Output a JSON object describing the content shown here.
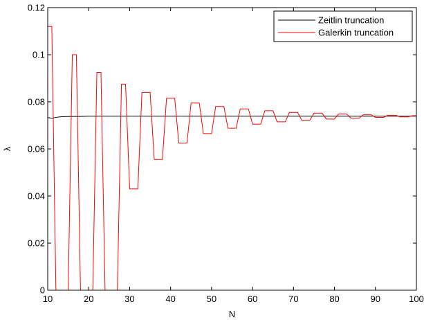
{
  "chart_data": {
    "type": "line",
    "title": "",
    "xlabel": "N",
    "ylabel": "λ",
    "xlim": [
      10,
      100
    ],
    "ylim": [
      0,
      0.12
    ],
    "xticks": [
      10,
      20,
      30,
      40,
      50,
      60,
      70,
      80,
      90,
      100
    ],
    "yticks": [
      0,
      0.02,
      0.04,
      0.06,
      0.08,
      0.1,
      0.12
    ],
    "xtick_labels": [
      "10",
      "20",
      "30",
      "40",
      "50",
      "60",
      "70",
      "80",
      "90",
      "100"
    ],
    "ytick_labels": [
      "0",
      "0.02",
      "0.04",
      "0.06",
      "0.08",
      "0.1",
      "0.12"
    ],
    "grid": false,
    "legend_position": "top-right",
    "series": [
      {
        "name": "Zeitlin truncation",
        "color": "#000000",
        "x": [
          10,
          11,
          12,
          13,
          14,
          16,
          18,
          20,
          25,
          30,
          40,
          50,
          60,
          70,
          80,
          90,
          100
        ],
        "y": [
          0.0733,
          0.073,
          0.0734,
          0.0736,
          0.0737,
          0.0738,
          0.0738,
          0.0739,
          0.0739,
          0.0739,
          0.0739,
          0.0739,
          0.0739,
          0.0739,
          0.0739,
          0.0739,
          0.0739
        ]
      },
      {
        "name": "Galerkin truncation",
        "color": "#ff0000",
        "x": [
          10,
          11,
          12,
          13,
          14,
          15,
          16,
          17,
          18,
          19,
          20,
          21,
          22,
          23,
          24,
          25,
          26,
          27,
          28,
          29,
          30,
          31,
          32,
          33,
          34,
          35,
          36,
          37,
          38,
          39,
          40,
          41,
          42,
          43,
          44,
          45,
          46,
          47,
          48,
          49,
          50,
          51,
          52,
          53,
          54,
          55,
          56,
          57,
          58,
          59,
          60,
          61,
          62,
          63,
          64,
          65,
          66,
          67,
          68,
          69,
          70,
          71,
          72,
          73,
          74,
          75,
          76,
          77,
          78,
          79,
          80,
          81,
          82,
          83,
          84,
          85,
          86,
          87,
          88,
          89,
          90,
          91,
          92,
          93,
          94,
          95,
          96,
          97,
          98,
          99,
          100
        ],
        "y": [
          0.112,
          0.112,
          0,
          0,
          0,
          0,
          0.1,
          0.1,
          0,
          0,
          0,
          0,
          0.0925,
          0.0925,
          0,
          0,
          0,
          0,
          0.0875,
          0.0875,
          0.043,
          0.043,
          0.043,
          0.084,
          0.084,
          0.084,
          0.0555,
          0.0555,
          0.0555,
          0.0815,
          0.0815,
          0.0815,
          0.0625,
          0.0625,
          0.0625,
          0.0795,
          0.0795,
          0.0795,
          0.0665,
          0.0665,
          0.0665,
          0.078,
          0.078,
          0.078,
          0.0688,
          0.0688,
          0.0688,
          0.077,
          0.077,
          0.077,
          0.0705,
          0.0705,
          0.0705,
          0.0762,
          0.0762,
          0.0762,
          0.0715,
          0.0715,
          0.0715,
          0.0755,
          0.0755,
          0.0755,
          0.0722,
          0.0722,
          0.0722,
          0.0752,
          0.0752,
          0.0752,
          0.0727,
          0.0727,
          0.0727,
          0.0748,
          0.0748,
          0.0748,
          0.0731,
          0.0731,
          0.0731,
          0.0745,
          0.0745,
          0.0745,
          0.0734,
          0.0734,
          0.0734,
          0.0743,
          0.0743,
          0.0743,
          0.0736,
          0.0736,
          0.0736,
          0.0741,
          0.0741
        ]
      }
    ]
  }
}
